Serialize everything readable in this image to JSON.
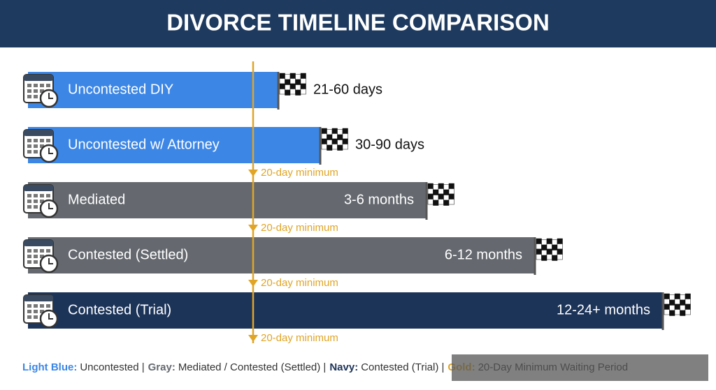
{
  "header": {
    "title": "DIVORCE TIMELINE COMPARISON"
  },
  "rows": [
    {
      "label": "Uncontested DIY",
      "duration": "21-60 days",
      "color": "#3c86e6"
    },
    {
      "label": "Uncontested w/ Attorney",
      "duration": "30-90 days",
      "color": "#3c86e6"
    },
    {
      "label": "Mediated",
      "duration": "3-6 months",
      "color": "#65696f"
    },
    {
      "label": "Contested (Settled)",
      "duration": "6-12 months",
      "color": "#65696f"
    },
    {
      "label": "Contested (Trial)",
      "duration": "12-24+ months",
      "color": "#1d3459"
    }
  ],
  "minimum_marker": {
    "color": "#e0a526",
    "labels": [
      "20-day minimum",
      "20-day minimum",
      "20-day minimum",
      "20-day minimum"
    ]
  },
  "legend": [
    {
      "key": "Light Blue:",
      "text": "Uncontested |",
      "color": "#3c86e6"
    },
    {
      "key": "Gray:",
      "text": "Mediated / Contested (Settled) |",
      "color": "#65696f"
    },
    {
      "key": "Navy:",
      "text": "Contested (Trial) |",
      "color": "#1d3459"
    },
    {
      "key": "Gold:",
      "text": "20-Day Minimum Waiting Period",
      "color": "#e0a526"
    }
  ]
}
